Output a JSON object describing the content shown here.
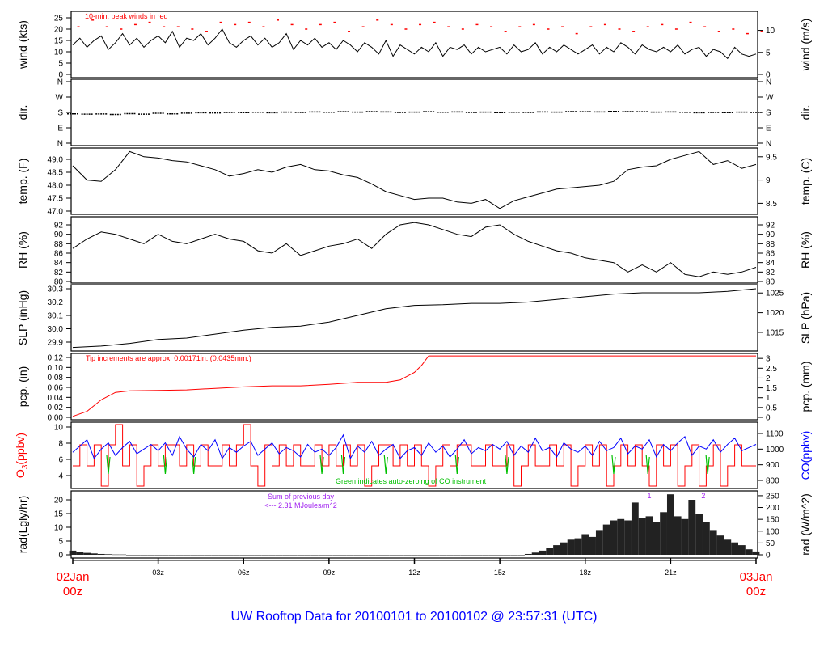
{
  "title": "UW Rooftop Data for 20100101  to  20100102 @ 23:57:31  (UTC)",
  "x_axis": {
    "start_label": [
      "02Jan",
      "00z"
    ],
    "end_label": [
      "03Jan",
      "00z"
    ],
    "tick_hours": [
      3,
      6,
      9,
      12,
      15,
      18,
      21
    ],
    "tick_labels": [
      "03z",
      "06z",
      "09z",
      "12z",
      "15z",
      "18z",
      "21z"
    ],
    "colors": {
      "date": "#ff0000"
    }
  },
  "chart_data": [
    {
      "id": "wind",
      "type": "line",
      "ylabel": "wind (kts)",
      "ylabel_right": "wind (m/s)",
      "ylim": [
        0,
        25
      ],
      "left_ticks": [
        0,
        5,
        10,
        15,
        20,
        25
      ],
      "left_tick_labels": [
        "0",
        "5",
        "10",
        "15",
        "20",
        "25"
      ],
      "right_ticks": [
        0,
        5,
        10
      ],
      "right_tick_labels": [
        "0",
        "5",
        "10"
      ],
      "annotation": "10-min. peak winds in red",
      "x_step_hours": 0.25,
      "values": [
        13,
        16,
        12,
        15,
        17,
        11,
        14,
        18,
        13,
        16,
        12,
        15,
        17,
        14,
        19,
        12,
        16,
        15,
        18,
        13,
        16,
        20,
        14,
        12,
        15,
        17,
        13,
        16,
        12,
        14,
        18,
        11,
        15,
        13,
        16,
        12,
        14,
        11,
        15,
        13,
        10,
        14,
        12,
        9,
        15,
        8,
        13,
        11,
        9,
        12,
        10,
        14,
        8,
        12,
        11,
        13,
        9,
        12,
        10,
        11,
        12,
        9,
        13,
        10,
        11,
        14,
        9,
        12,
        10,
        13,
        11,
        9,
        11,
        13,
        9,
        12,
        10,
        14,
        12,
        9,
        13,
        11,
        10,
        12,
        10,
        13,
        9,
        11,
        12,
        8,
        11,
        10,
        7,
        12,
        9,
        8,
        9
      ],
      "peak_x_step_hours": 0.5,
      "peaks": [
        21,
        24,
        21,
        20,
        22,
        23,
        21,
        21,
        20,
        19,
        23,
        22,
        23,
        21,
        24,
        22,
        20,
        22,
        23,
        19,
        21,
        24,
        22,
        20,
        22,
        23,
        21,
        20,
        22,
        21,
        19,
        21,
        22,
        20,
        21,
        18,
        21,
        22,
        20,
        19,
        21,
        22,
        20,
        23,
        21,
        19,
        20,
        18,
        19
      ],
      "colors": {
        "line": "#000000",
        "peaks": "#ff0000"
      }
    },
    {
      "id": "dir",
      "type": "scatter",
      "ylabel": "dir.",
      "ylabel_right": "dir.",
      "ylim": [
        0,
        360
      ],
      "left_ticks": [
        0,
        90,
        180,
        270,
        360
      ],
      "left_tick_labels": [
        "N",
        "E",
        "S",
        "W",
        "N"
      ],
      "right_ticks": [
        0,
        90,
        180,
        270,
        360
      ],
      "right_tick_labels": [
        "N",
        "E",
        "S",
        "W",
        "N"
      ],
      "x_step_hours": 0.5,
      "values": [
        172,
        170,
        171,
        168,
        173,
        170,
        175,
        172,
        176,
        178,
        177,
        180,
        179,
        181,
        178,
        182,
        180,
        183,
        181,
        184,
        182,
        185,
        183,
        180,
        182,
        184,
        181,
        183,
        180,
        182,
        179,
        181,
        180,
        183,
        182,
        185,
        184,
        183,
        186,
        185,
        184,
        182,
        183,
        181,
        178,
        180,
        179,
        182,
        180
      ]
    },
    {
      "id": "temp",
      "type": "line",
      "ylabel": "temp. (F)",
      "ylabel_right": "temp. (C)",
      "ylim": [
        47.0,
        49.0
      ],
      "left_ticks": [
        47.0,
        47.5,
        48.0,
        48.5,
        49.0
      ],
      "left_tick_labels": [
        "47.0",
        "47.5",
        "48.0",
        "48.5",
        "49.0"
      ],
      "right_ticks": [
        8.5,
        9,
        9.5
      ],
      "right_tick_labels": [
        "8.5",
        "9",
        "9.5"
      ],
      "x_step_hours": 0.5,
      "values": [
        48.75,
        48.2,
        48.15,
        48.6,
        49.3,
        49.1,
        49.05,
        48.95,
        48.9,
        48.75,
        48.6,
        48.35,
        48.45,
        48.6,
        48.5,
        48.7,
        48.8,
        48.6,
        48.55,
        48.4,
        48.3,
        48.05,
        47.75,
        47.6,
        47.45,
        47.5,
        47.5,
        47.35,
        47.3,
        47.45,
        47.1,
        47.4,
        47.55,
        47.7,
        47.85,
        47.9,
        47.95,
        48.0,
        48.15,
        48.6,
        48.7,
        48.75,
        49.0,
        49.15,
        49.3,
        48.8,
        48.95,
        48.65,
        48.8
      ]
    },
    {
      "id": "rh",
      "type": "line",
      "ylabel": "RH (%)",
      "ylabel_right": "RH (%)",
      "ylim": [
        80,
        92
      ],
      "left_ticks": [
        80,
        82,
        84,
        86,
        88,
        90,
        92
      ],
      "left_tick_labels": [
        "80",
        "82",
        "84",
        "86",
        "88",
        "90",
        "92"
      ],
      "right_ticks": [
        80,
        82,
        84,
        86,
        88,
        90,
        92
      ],
      "right_tick_labels": [
        "80",
        "82",
        "84",
        "86",
        "88",
        "90",
        "92"
      ],
      "x_step_hours": 0.5,
      "values": [
        87,
        89,
        90.5,
        90,
        89,
        88,
        90,
        88.5,
        88,
        89,
        90,
        89,
        88.5,
        86.5,
        86,
        88,
        85.5,
        86.5,
        87.5,
        88,
        89,
        87,
        90,
        92,
        92.5,
        92,
        91,
        90,
        89.5,
        91.5,
        92,
        90,
        88.5,
        87.5,
        86.5,
        86,
        85,
        84.5,
        84,
        82,
        83.5,
        82,
        84,
        81.5,
        81,
        82,
        81.5,
        82,
        83
      ]
    },
    {
      "id": "slp",
      "type": "line",
      "ylabel": "SLP (inHg)",
      "ylabel_right": "SLP (hPa)",
      "ylim": [
        29.9,
        30.3
      ],
      "left_ticks": [
        29.9,
        30.0,
        30.1,
        30.2,
        30.3
      ],
      "left_tick_labels": [
        "29.9",
        "30.0",
        "30.1",
        "30.2",
        "30.3"
      ],
      "right_ticks": [
        1015,
        1020,
        1025
      ],
      "right_tick_labels": [
        "1015",
        "1020",
        "1025"
      ],
      "x_step_hours": 1,
      "values": [
        29.86,
        29.87,
        29.89,
        29.92,
        29.93,
        29.96,
        29.99,
        30.01,
        30.02,
        30.05,
        30.1,
        30.15,
        30.175,
        30.18,
        30.19,
        30.19,
        30.2,
        30.22,
        30.24,
        30.26,
        30.27,
        30.27,
        30.27,
        30.28,
        30.3
      ]
    },
    {
      "id": "pcp",
      "type": "line",
      "ylabel": "pcp. (in)",
      "ylabel_right": "pcp. (mm)",
      "ylim": [
        0,
        0.12
      ],
      "left_ticks": [
        0,
        0.02,
        0.04,
        0.06,
        0.08,
        0.1,
        0.12
      ],
      "left_tick_labels": [
        "0.00",
        "0.02",
        "0.04",
        "0.06",
        "0.08",
        "0.10",
        "0.12"
      ],
      "right_ticks": [
        0,
        0.5,
        1,
        1.5,
        2,
        2.5,
        3
      ],
      "right_tick_labels": [
        "0",
        "0.5",
        "1",
        "1.5",
        "2",
        "2.5",
        "3"
      ],
      "annotation": "Tip increments are approx. 0.00171in. (0.0435mm.)",
      "x": [
        0,
        0.5,
        1,
        1.5,
        2,
        3,
        4,
        5,
        6,
        7,
        8,
        9,
        10,
        11,
        11.5,
        12,
        12.25,
        12.5,
        24
      ],
      "values": [
        0.002,
        0.012,
        0.035,
        0.05,
        0.053,
        0.054,
        0.055,
        0.058,
        0.061,
        0.063,
        0.063,
        0.066,
        0.07,
        0.07,
        0.075,
        0.09,
        0.104,
        0.123,
        0.123
      ],
      "colors": {
        "line": "#ff0000"
      }
    },
    {
      "id": "o3co",
      "type": "line",
      "ylabel_parts": [
        "O",
        "3",
        "(ppbv)"
      ],
      "ylabel_right": "CO(ppbv)",
      "ylim": [
        2.7,
        10.3
      ],
      "left_ticks": [
        4,
        6,
        8,
        10
      ],
      "left_tick_labels": [
        "4",
        "6",
        "8",
        "10"
      ],
      "right_ticks": [
        800,
        900,
        1000,
        1100
      ],
      "right_tick_labels": [
        "800",
        "900",
        "1000",
        "1100"
      ],
      "annotation": "Green indicates auto-zeroing of CO instrument",
      "x_step_hours": 0.25,
      "o3_values": [
        5.2,
        7.8,
        5.2,
        7.8,
        2.7,
        7.8,
        10.3,
        5.2,
        7.8,
        2.7,
        5.2,
        7.8,
        5.2,
        7.8,
        7.8,
        5.2,
        7.8,
        5.2,
        7.8,
        5.2,
        5.2,
        7.8,
        5.2,
        7.8,
        10.3,
        5.2,
        2.7,
        7.8,
        5.2,
        7.8,
        5.2,
        7.8,
        5.2,
        5.2,
        7.8,
        5.2,
        7.8,
        5.2,
        7.8,
        5.2,
        7.8,
        2.7,
        5.2,
        7.8,
        7.8,
        5.2,
        7.8,
        5.2,
        7.8,
        5.2,
        2.7,
        5.2,
        7.8,
        5.2,
        7.8,
        7.8,
        5.2,
        5.2,
        7.8,
        5.2,
        5.2,
        7.8,
        2.7,
        5.2,
        7.8,
        5.2,
        5.2,
        7.8,
        5.2,
        7.8,
        2.7,
        5.2,
        7.8,
        5.2,
        7.8,
        2.7,
        5.2,
        7.8,
        5.2,
        7.8,
        5.2,
        2.7,
        7.8,
        5.2,
        7.8,
        2.7,
        5.2,
        7.8,
        2.7,
        5.2,
        7.8,
        2.7,
        5.2,
        7.8,
        5.2,
        5.2,
        5.2
      ],
      "co_values": [
        980,
        1020,
        1060,
        940,
        1000,
        1040,
        960,
        1010,
        1050,
        970,
        1000,
        1030,
        990,
        1040,
        960,
        1080,
        1000,
        950,
        1030,
        990,
        1060,
        940,
        1010,
        980,
        1020,
        1050,
        960,
        1000,
        1040,
        970,
        1010,
        990,
        950,
        1030,
        980,
        1000,
        960,
        1010,
        1090,
        940,
        1020,
        980,
        1050,
        960,
        1000,
        1030,
        940,
        990,
        1010,
        960,
        1040,
        980,
        1020,
        950,
        1000,
        1060,
        970,
        1010,
        990,
        1030,
        1000,
        1050,
        960,
        1020,
        980,
        1070,
        990,
        1010,
        950,
        1040,
        1000,
        980,
        1020,
        960,
        1050,
        990,
        1010,
        1070,
        970,
        1020,
        1000,
        1060,
        950,
        1030,
        990,
        1040,
        1080,
        960,
        1020,
        1000,
        1060,
        980,
        1030,
        1070,
        990,
        1010,
        1030
      ],
      "autozero_hours": [
        1.25,
        3.25,
        4.25,
        8.75,
        9.5,
        11.0,
        13.5,
        15.25,
        19.0,
        20.2,
        22.3
      ],
      "colors": {
        "o3": "#ff0000",
        "co": "#0000ff",
        "autozero": "#00c000"
      }
    },
    {
      "id": "rad",
      "type": "bar",
      "ylabel": "rad(Lgly/hr)",
      "ylabel_right": "rad (W/m^2)",
      "ylim": [
        0,
        20
      ],
      "left_ticks": [
        0,
        5,
        10,
        15,
        20
      ],
      "left_tick_labels": [
        "0",
        "5",
        "10",
        "15",
        "20"
      ],
      "right_ticks": [
        0,
        50,
        100,
        150,
        200,
        250
      ],
      "right_tick_labels": [
        "0",
        "50",
        "100",
        "150",
        "200",
        "250"
      ],
      "annotation_lines": [
        "Sum of previous day",
        "<--- 2.31 MJoules/m^2"
      ],
      "markers": [
        {
          "hour": 20.25,
          "label": "1"
        },
        {
          "hour": 22.15,
          "label": "2"
        }
      ],
      "x_step_hours": 0.25,
      "values": [
        1.5,
        1.0,
        0.7,
        0.5,
        0.3,
        0.2,
        0.1,
        0.1,
        0,
        0,
        0,
        0,
        0,
        0,
        0,
        0,
        0,
        0,
        0,
        0,
        0,
        0,
        0,
        0,
        0,
        0,
        0,
        0,
        0,
        0,
        0,
        0,
        0,
        0,
        0,
        0,
        0,
        0,
        0,
        0,
        0,
        0,
        0,
        0,
        0,
        0,
        0,
        0,
        0,
        0,
        0,
        0,
        0,
        0,
        0,
        0,
        0,
        0,
        0,
        0,
        0,
        0,
        0,
        0,
        0.3,
        0.8,
        1.5,
        2.5,
        3.5,
        4.5,
        5.5,
        6.0,
        7.5,
        6.5,
        9.0,
        11.0,
        12.5,
        13.0,
        12.5,
        19.0,
        13.5,
        14.0,
        12.0,
        15.5,
        22.0,
        14.0,
        13.0,
        20.0,
        15.0,
        12.0,
        9.0,
        7.0,
        5.5,
        4.5,
        3.5,
        2.0,
        1.2
      ],
      "colors": {
        "bars": "#222222",
        "annotation": "#a020f0"
      }
    }
  ]
}
